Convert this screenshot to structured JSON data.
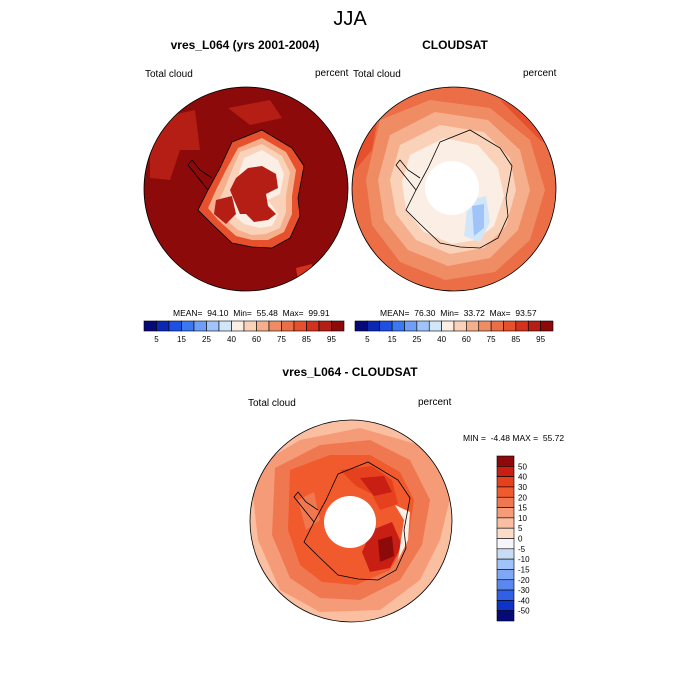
{
  "figure_title": "JJA",
  "panels": [
    {
      "title": "vres_L064 (yrs 2001-2004)",
      "left_label": "Total cloud",
      "right_label": "percent",
      "stats": "MEAN=  94.10  Min=  55.48  Max=  99.91"
    },
    {
      "title": "CLOUDSAT",
      "left_label": "Total cloud",
      "right_label": "percent",
      "stats": "MEAN=  76.30  Min=  33.72  Max=  93.57"
    },
    {
      "title": "vres_L064 - CLOUDSAT",
      "left_label": "Total cloud",
      "right_label": "percent",
      "stats": "MIN =  -4.48 MAX =  55.72"
    }
  ],
  "colorbar_top": {
    "tick_labels": [
      "5",
      "15",
      "25",
      "40",
      "60",
      "75",
      "85",
      "95"
    ],
    "colors": [
      "#050a78",
      "#0a28b4",
      "#1e50e6",
      "#3c78f0",
      "#6e9ef5",
      "#a0c3fa",
      "#d2e6fa",
      "#fbeee4",
      "#fad2b9",
      "#f5af8c",
      "#f08c64",
      "#eb6e46",
      "#e6502d",
      "#d2321e",
      "#b41e14",
      "#8c0a0a"
    ]
  },
  "colorbar_diff": {
    "tick_labels": [
      "50",
      "40",
      "30",
      "20",
      "15",
      "10",
      "5",
      "0",
      "-5",
      "-10",
      "-15",
      "-20",
      "-30",
      "-40",
      "-50"
    ],
    "colors": [
      "#8c0a0a",
      "#c81e14",
      "#e6411e",
      "#f05a2d",
      "#f07850",
      "#f59b78",
      "#fabea0",
      "#fcdcc8",
      "#f5f5fa",
      "#c8dcf5",
      "#a0c3fa",
      "#7ea8f5",
      "#5a87f0",
      "#3060e6",
      "#0f32c8",
      "#050a78"
    ]
  }
}
